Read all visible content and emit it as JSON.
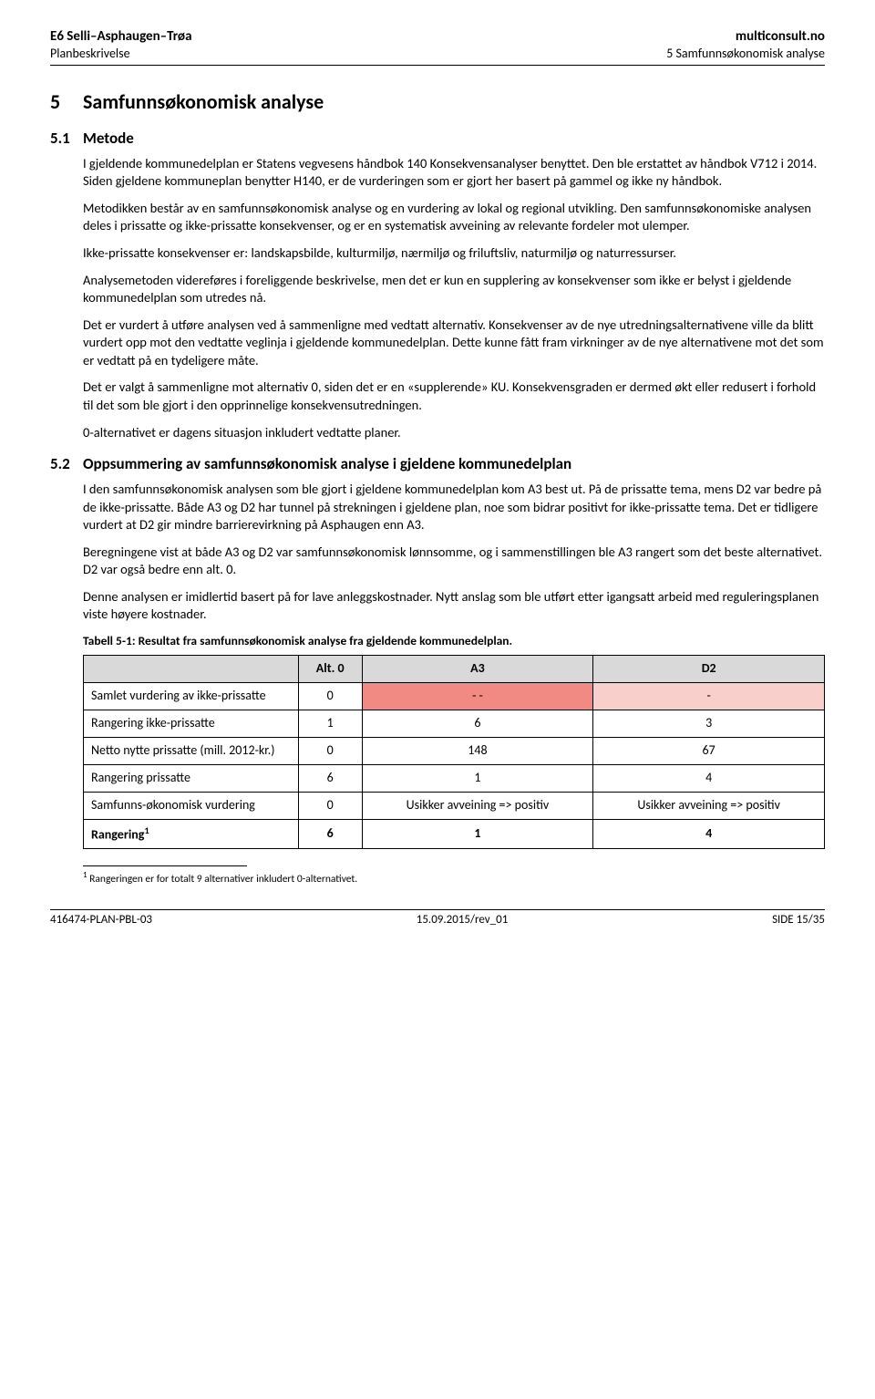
{
  "header": {
    "left_top": "E6 Selli–Asphaugen–Trøa",
    "right_top": "multiconsult.no",
    "left_sub": "Planbeskrivelse",
    "right_sub": "5 Samfunnsøkonomisk analyse"
  },
  "h1_num": "5",
  "h1_text": "Samfunnsøkonomisk analyse",
  "s51": {
    "num": "5.1",
    "title": "Metode",
    "p1": "I gjeldende kommunedelplan er Statens vegvesens håndbok 140 Konsekvensanalyser benyttet. Den ble erstattet av håndbok V712 i 2014. Siden gjeldene kommuneplan benytter H140, er de vurderingen som er gjort her basert på gammel og ikke ny håndbok.",
    "p2": "Metodikken består av en samfunnsøkonomisk analyse og en vurdering av lokal og regional utvikling. Den samfunnsøkonomiske analysen deles i prissatte og ikke-prissatte konsekvenser, og er en systematisk avveining av relevante fordeler mot ulemper.",
    "p3": "Ikke-prissatte konsekvenser er: landskapsbilde, kulturmiljø, nærmiljø og friluftsliv, naturmiljø og naturressurser.",
    "p4": "Analysemetoden videreføres i foreliggende beskrivelse, men det er kun en supplering av konsekvenser som ikke er belyst i gjeldende kommunedelplan som utredes nå.",
    "p5": "Det er vurdert å utføre analysen ved å sammenligne med vedtatt alternativ. Konsekvenser av de nye utredningsalternativene ville da blitt vurdert opp mot den vedtatte veglinja i gjeldende kommunedelplan. Dette kunne fått fram virkninger av de nye alternativene mot det som er vedtatt på en tydeligere måte.",
    "p6": "Det er valgt å sammenligne mot alternativ 0, siden det er en «supplerende» KU. Konsekvensgraden er dermed økt eller redusert i forhold til det som ble gjort i den opprinnelige konsekvensutredningen.",
    "p7": "0-alternativet er dagens situasjon inkludert vedtatte planer."
  },
  "s52": {
    "num": "5.2",
    "title": "Oppsummering av samfunnsøkonomisk analyse i gjeldene kommunedelplan",
    "p1": "I den samfunnsøkonomisk analysen som ble gjort i gjeldene kommunedelplan kom A3 best ut. På de prissatte tema, mens D2 var bedre på de ikke-prissatte. Både A3 og D2 har tunnel på strekningen i gjeldene plan, noe som bidrar positivt for ikke-prissatte tema. Det er tidligere vurdert at D2 gir mindre barrierevirkning på Asphaugen enn A3.",
    "p2": "Beregningene vist at både A3 og D2 var samfunnsøkonomisk lønnsomme, og i sammenstillingen ble A3 rangert som det beste alternativet. D2 var også bedre enn alt. 0.",
    "p3": "Denne analysen er imidlertid basert på for lave anleggskostnader. Nytt anslag som ble utført etter igangsatt arbeid med reguleringsplanen viste høyere kostnader."
  },
  "table": {
    "caption": "Tabell 5-1: Resultat fra samfunnsøkonomisk analyse fra gjeldende kommunedelplan.",
    "columns": [
      "Alt. 0",
      "A3",
      "D2"
    ],
    "rows": [
      {
        "label": "Samlet vurdering av ikke-prissatte",
        "cells": [
          "0",
          "- -",
          "-"
        ],
        "bg": [
          "",
          "#f08a82",
          "#f8cfcb"
        ]
      },
      {
        "label": "Rangering ikke-prissatte",
        "cells": [
          "1",
          "6",
          "3"
        ],
        "bg": [
          "",
          "",
          ""
        ]
      },
      {
        "label": "Netto nytte prissatte (mill. 2012-kr.)",
        "cells": [
          "0",
          "148",
          "67"
        ],
        "bg": [
          "",
          "",
          ""
        ]
      },
      {
        "label": "Rangering prissatte",
        "cells": [
          "6",
          "1",
          "4"
        ],
        "bg": [
          "",
          "",
          ""
        ]
      },
      {
        "label": "Samfunns-økonomisk vurdering",
        "cells": [
          "0",
          "Usikker avveining => positiv",
          "Usikker avveining => positiv"
        ],
        "bg": [
          "",
          "",
          ""
        ]
      },
      {
        "label": "Rangering",
        "sup": "1",
        "cells": [
          "6",
          "1",
          "4"
        ],
        "bg": [
          "",
          "",
          ""
        ],
        "bold": true
      }
    ]
  },
  "footnote": {
    "marker": "1",
    "text": "Rangeringen er for totalt 9 alternativer inkludert 0-alternativet."
  },
  "footer": {
    "left": "416474-PLAN-PBL-03",
    "center": "15.09.2015/rev_01",
    "right": "SIDE 15/35"
  }
}
